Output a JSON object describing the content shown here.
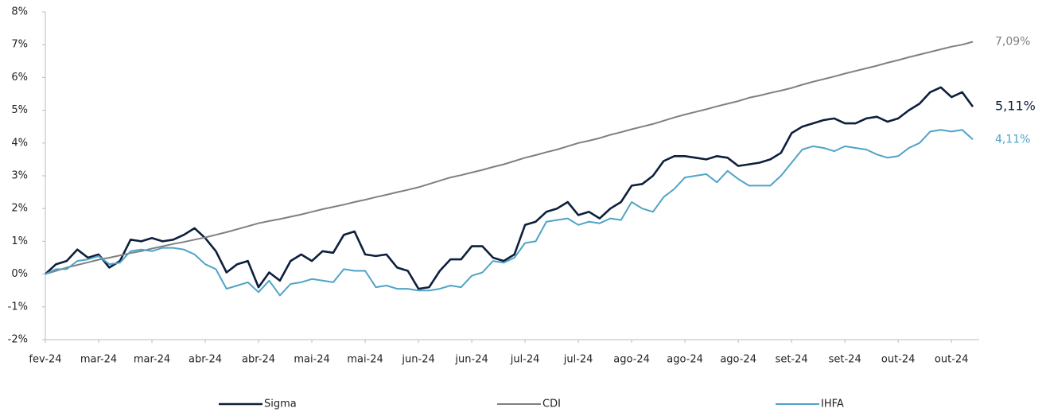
{
  "chart_data": {
    "type": "line",
    "categories": [
      "fev-24",
      null,
      null,
      null,
      null,
      "mar-24",
      null,
      null,
      null,
      null,
      "mar-24",
      null,
      null,
      null,
      null,
      "abr-24",
      null,
      null,
      null,
      null,
      "abr-24",
      null,
      null,
      null,
      null,
      "mai-24",
      null,
      null,
      null,
      null,
      "mai-24",
      null,
      null,
      null,
      null,
      "jun-24",
      null,
      null,
      null,
      null,
      "jun-24",
      null,
      null,
      null,
      null,
      "jul-24",
      null,
      null,
      null,
      null,
      "jul-24",
      null,
      null,
      null,
      null,
      "ago-24",
      null,
      null,
      null,
      null,
      "ago-24",
      null,
      null,
      null,
      null,
      "ago-24",
      null,
      null,
      null,
      null,
      "set-24",
      null,
      null,
      null,
      null,
      "set-24",
      null,
      null,
      null,
      null,
      "out-24",
      null,
      null,
      null,
      null,
      "out-24",
      null,
      null
    ],
    "series": [
      {
        "name": "Sigma",
        "color": "#0d1f3c",
        "values": [
          0,
          0.3,
          0.4,
          0.75,
          0.5,
          0.6,
          0.2,
          0.4,
          1.05,
          1.0,
          1.1,
          1.0,
          1.05,
          1.2,
          1.4,
          1.1,
          0.7,
          0.05,
          0.3,
          0.4,
          -0.4,
          0.05,
          -0.2,
          0.4,
          0.6,
          0.4,
          0.7,
          0.65,
          1.2,
          1.3,
          0.6,
          0.55,
          0.6,
          0.2,
          0.1,
          -0.45,
          -0.4,
          0.1,
          0.45,
          0.45,
          0.85,
          0.85,
          0.5,
          0.4,
          0.6,
          1.5,
          1.6,
          1.9,
          2.0,
          2.2,
          1.8,
          1.9,
          1.7,
          2.0,
          2.2,
          2.7,
          2.75,
          3.0,
          3.45,
          3.6,
          3.6,
          3.55,
          3.5,
          3.6,
          3.55,
          3.3,
          3.35,
          3.4,
          3.5,
          3.7,
          4.3,
          4.5,
          4.6,
          4.7,
          4.75,
          4.6,
          4.6,
          4.75,
          4.8,
          4.65,
          4.75,
          5.0,
          5.2,
          5.55,
          5.7,
          5.4,
          5.55,
          5.11
        ],
        "value_labels": [
          null,
          null,
          null,
          null,
          null,
          null,
          null,
          null,
          null,
          null,
          null,
          null,
          null,
          null,
          null,
          null,
          null,
          null,
          null,
          null,
          null,
          null,
          null,
          null,
          null,
          null,
          null,
          null,
          null,
          null,
          null,
          null,
          null,
          null,
          null,
          null,
          null,
          null,
          null,
          null,
          null,
          null,
          null,
          null,
          null,
          null,
          null,
          null,
          null,
          null,
          null,
          null,
          null,
          null,
          null,
          null,
          null,
          null,
          null,
          null,
          null,
          null,
          null,
          null,
          null,
          null,
          null,
          null,
          null,
          null,
          null,
          null,
          null,
          null,
          null,
          null,
          null,
          null,
          null,
          null,
          null,
          null,
          null,
          null,
          null,
          null,
          null,
          "5,11%"
        ]
      },
      {
        "name": "CDI",
        "color": "#808080",
        "values": [
          0,
          0.1,
          0.2,
          0.28,
          0.36,
          0.44,
          0.5,
          0.57,
          0.64,
          0.7,
          0.78,
          0.85,
          0.92,
          0.98,
          1.05,
          1.12,
          1.2,
          1.28,
          1.37,
          1.46,
          1.55,
          1.62,
          1.68,
          1.75,
          1.82,
          1.9,
          1.98,
          2.05,
          2.12,
          2.2,
          2.27,
          2.35,
          2.42,
          2.5,
          2.57,
          2.65,
          2.75,
          2.85,
          2.95,
          3.02,
          3.1,
          3.18,
          3.27,
          3.35,
          3.45,
          3.55,
          3.63,
          3.72,
          3.8,
          3.9,
          4.0,
          4.07,
          4.15,
          4.25,
          4.33,
          4.42,
          4.5,
          4.58,
          4.68,
          4.78,
          4.87,
          4.95,
          5.03,
          5.12,
          5.2,
          5.28,
          5.38,
          5.45,
          5.53,
          5.6,
          5.68,
          5.78,
          5.87,
          5.95,
          6.03,
          6.12,
          6.2,
          6.28,
          6.36,
          6.45,
          6.53,
          6.62,
          6.7,
          6.78,
          6.86,
          6.94,
          7.0,
          7.09
        ],
        "value_labels": [
          null,
          null,
          null,
          null,
          null,
          null,
          null,
          null,
          null,
          null,
          null,
          null,
          null,
          null,
          null,
          null,
          null,
          null,
          null,
          null,
          null,
          null,
          null,
          null,
          null,
          null,
          null,
          null,
          null,
          null,
          null,
          null,
          null,
          null,
          null,
          null,
          null,
          null,
          null,
          null,
          null,
          null,
          null,
          null,
          null,
          null,
          null,
          null,
          null,
          null,
          null,
          null,
          null,
          null,
          null,
          null,
          null,
          null,
          null,
          null,
          null,
          null,
          null,
          null,
          null,
          null,
          null,
          null,
          null,
          null,
          null,
          null,
          null,
          null,
          null,
          null,
          null,
          null,
          null,
          null,
          null,
          null,
          null,
          null,
          null,
          null,
          null,
          "7,09%"
        ]
      },
      {
        "name": "IHFA",
        "color": "#4fa3c7",
        "values": [
          0,
          0.15,
          0.15,
          0.4,
          0.45,
          0.55,
          0.3,
          0.35,
          0.7,
          0.75,
          0.7,
          0.8,
          0.8,
          0.75,
          0.6,
          0.3,
          0.15,
          -0.45,
          -0.35,
          -0.25,
          -0.55,
          -0.2,
          -0.65,
          -0.3,
          -0.25,
          -0.15,
          -0.2,
          -0.25,
          0.15,
          0.1,
          0.1,
          -0.4,
          -0.35,
          -0.45,
          -0.45,
          -0.5,
          -0.5,
          -0.45,
          -0.35,
          -0.4,
          -0.05,
          0.05,
          0.4,
          0.35,
          0.5,
          0.95,
          1.0,
          1.6,
          1.65,
          1.7,
          1.5,
          1.6,
          1.55,
          1.7,
          1.65,
          2.2,
          2.0,
          1.9,
          2.35,
          2.6,
          2.95,
          3.0,
          3.05,
          2.8,
          3.15,
          2.9,
          2.7,
          2.7,
          2.7,
          3.0,
          3.4,
          3.8,
          3.9,
          3.85,
          3.75,
          3.9,
          3.85,
          3.8,
          3.65,
          3.55,
          3.6,
          3.85,
          4.0,
          4.35,
          4.4,
          4.35,
          4.4,
          4.11
        ],
        "value_labels": [
          null,
          null,
          null,
          null,
          null,
          null,
          null,
          null,
          null,
          null,
          null,
          null,
          null,
          null,
          null,
          null,
          null,
          null,
          null,
          null,
          null,
          null,
          null,
          null,
          null,
          null,
          null,
          null,
          null,
          null,
          null,
          null,
          null,
          null,
          null,
          null,
          null,
          null,
          null,
          null,
          null,
          null,
          null,
          null,
          null,
          null,
          null,
          null,
          null,
          null,
          null,
          null,
          null,
          null,
          null,
          null,
          null,
          null,
          null,
          null,
          null,
          null,
          null,
          null,
          null,
          null,
          null,
          null,
          null,
          null,
          null,
          null,
          null,
          null,
          null,
          null,
          null,
          null,
          null,
          null,
          null,
          null,
          null,
          null,
          null,
          null,
          null,
          "4,11%"
        ]
      }
    ],
    "ylim": [
      -2,
      8
    ],
    "yticks": [
      {
        "value": -2,
        "label": "-2%"
      },
      {
        "value": -1,
        "label": "-1%"
      },
      {
        "value": 0,
        "label": "0%"
      },
      {
        "value": 1,
        "label": "1%"
      },
      {
        "value": 2,
        "label": "2%"
      },
      {
        "value": 3,
        "label": "3%"
      },
      {
        "value": 4,
        "label": "4%"
      },
      {
        "value": 5,
        "label": "5%"
      },
      {
        "value": 6,
        "label": "6%"
      },
      {
        "value": 7,
        "label": "7%"
      },
      {
        "value": 8,
        "label": "8%"
      }
    ],
    "grid": false,
    "legend": "bottom"
  }
}
